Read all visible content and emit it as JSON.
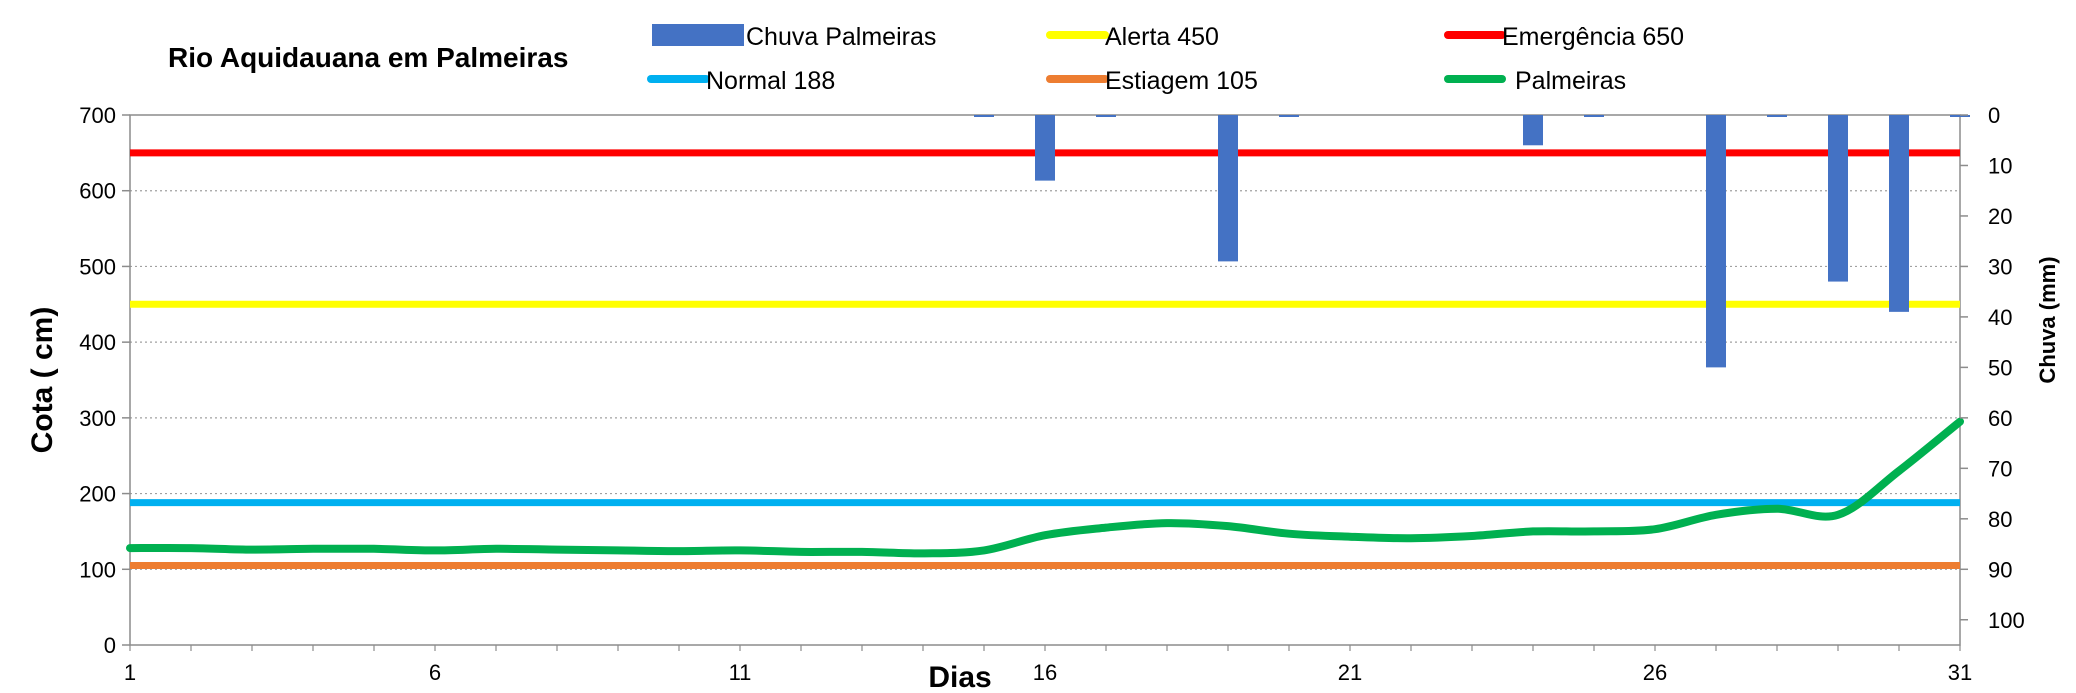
{
  "chart_data": {
    "type": "line",
    "title": "Rio Aquidauana em Palmeiras",
    "xlabel": "Dias",
    "ylabel": "Cota   ( cm)",
    "y2label": "Chuva (mm)",
    "xlim": [
      1,
      31
    ],
    "ylim": [
      0,
      700
    ],
    "y2lim": [
      0,
      105
    ],
    "y2_inverted": true,
    "x_ticks": [
      1,
      6,
      11,
      16,
      21,
      26,
      31
    ],
    "y_ticks": [
      0,
      100,
      200,
      300,
      400,
      500,
      600,
      700
    ],
    "y2_ticks": [
      0,
      10,
      20,
      30,
      40,
      50,
      60,
      70,
      80,
      90,
      100
    ],
    "grid": "horizontal dotted",
    "legend_position": "top",
    "reference_lines": [
      {
        "name": "Normal  188",
        "value": 188,
        "color": "#00B0F0"
      },
      {
        "name": "Alerta 450",
        "value": 450,
        "color": "#FFFF00"
      },
      {
        "name": "Emergência 650",
        "value": 650,
        "color": "#FF0000"
      },
      {
        "name": "Estiagem 105",
        "value": 105,
        "color": "#ED7D31"
      }
    ],
    "bars": {
      "name": "Chuva  Palmeiras",
      "color": "#4472C4",
      "x": [
        15,
        16,
        17,
        19,
        20,
        24,
        25,
        27,
        28,
        29,
        30,
        31
      ],
      "values": [
        0,
        13,
        0,
        29,
        0,
        6,
        0,
        50,
        0,
        33,
        39,
        0
      ]
    },
    "series": [
      {
        "name": "Palmeiras",
        "color": "#00B050",
        "x": [
          1,
          2,
          3,
          4,
          5,
          6,
          7,
          8,
          9,
          10,
          11,
          12,
          13,
          14,
          15,
          16,
          17,
          18,
          19,
          20,
          21,
          22,
          23,
          24,
          25,
          26,
          27,
          28,
          29,
          30,
          31
        ],
        "values": [
          128,
          128,
          126,
          127,
          127,
          125,
          127,
          126,
          125,
          124,
          125,
          123,
          123,
          121,
          125,
          145,
          155,
          161,
          157,
          147,
          143,
          141,
          144,
          150,
          150,
          153,
          172,
          180,
          172,
          230,
          295
        ]
      }
    ]
  }
}
